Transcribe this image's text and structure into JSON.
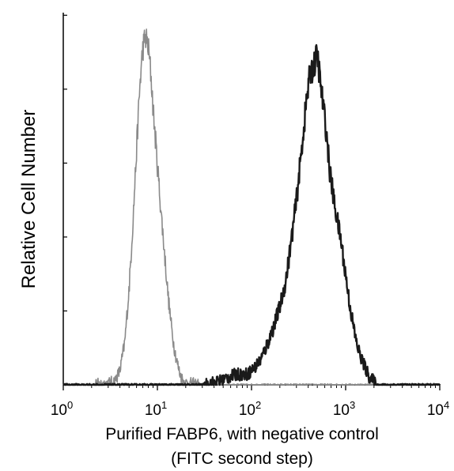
{
  "chart_data": {
    "type": "line",
    "title": "",
    "xlabel_line1": "Purified FABP6, with negative control",
    "xlabel_line2": "(FITC second step)",
    "ylabel": "Relative Cell Number",
    "xscale": "log",
    "xlim": [
      1,
      10000
    ],
    "ylim": [
      0,
      1
    ],
    "grid": false,
    "legend": "none",
    "x_ticks": [
      {
        "base": "10",
        "exp": "0",
        "value": 1
      },
      {
        "base": "10",
        "exp": "1",
        "value": 10
      },
      {
        "base": "10",
        "exp": "2",
        "value": 100
      },
      {
        "base": "10",
        "exp": "3",
        "value": 1000
      },
      {
        "base": "10",
        "exp": "4",
        "value": 10000
      }
    ],
    "series": [
      {
        "color": "#8a8a8a",
        "x": [
          1,
          2,
          3,
          3.5,
          4,
          4.5,
          5,
          5.5,
          6,
          6.5,
          7,
          7.5,
          8,
          8.5,
          9,
          10,
          11,
          12,
          13,
          14,
          15,
          16,
          17,
          18,
          19,
          20,
          30,
          100,
          1000,
          10000
        ],
        "y": [
          0,
          0,
          0.004,
          0.01,
          0.04,
          0.12,
          0.27,
          0.46,
          0.66,
          0.84,
          0.95,
          0.98,
          0.95,
          0.88,
          0.78,
          0.62,
          0.48,
          0.36,
          0.25,
          0.17,
          0.11,
          0.07,
          0.04,
          0.02,
          0.01,
          0.005,
          0,
          0,
          0,
          0
        ]
      },
      {
        "color": "#1a1a1a",
        "x": [
          1,
          30,
          45,
          55,
          70,
          90,
          110,
          130,
          150,
          170,
          200,
          230,
          260,
          300,
          340,
          380,
          420,
          460,
          500,
          540,
          580,
          620,
          680,
          750,
          820,
          900,
          1000,
          1100,
          1200,
          1300,
          1400,
          1600,
          1800,
          2000,
          2100,
          3000,
          10000
        ],
        "y": [
          0,
          0,
          0.01,
          0.02,
          0.03,
          0.03,
          0.05,
          0.08,
          0.12,
          0.16,
          0.22,
          0.29,
          0.39,
          0.52,
          0.66,
          0.79,
          0.88,
          0.9,
          0.93,
          0.85,
          0.78,
          0.72,
          0.6,
          0.52,
          0.46,
          0.4,
          0.31,
          0.23,
          0.17,
          0.12,
          0.09,
          0.05,
          0.02,
          0.01,
          0,
          0,
          0
        ]
      }
    ]
  }
}
